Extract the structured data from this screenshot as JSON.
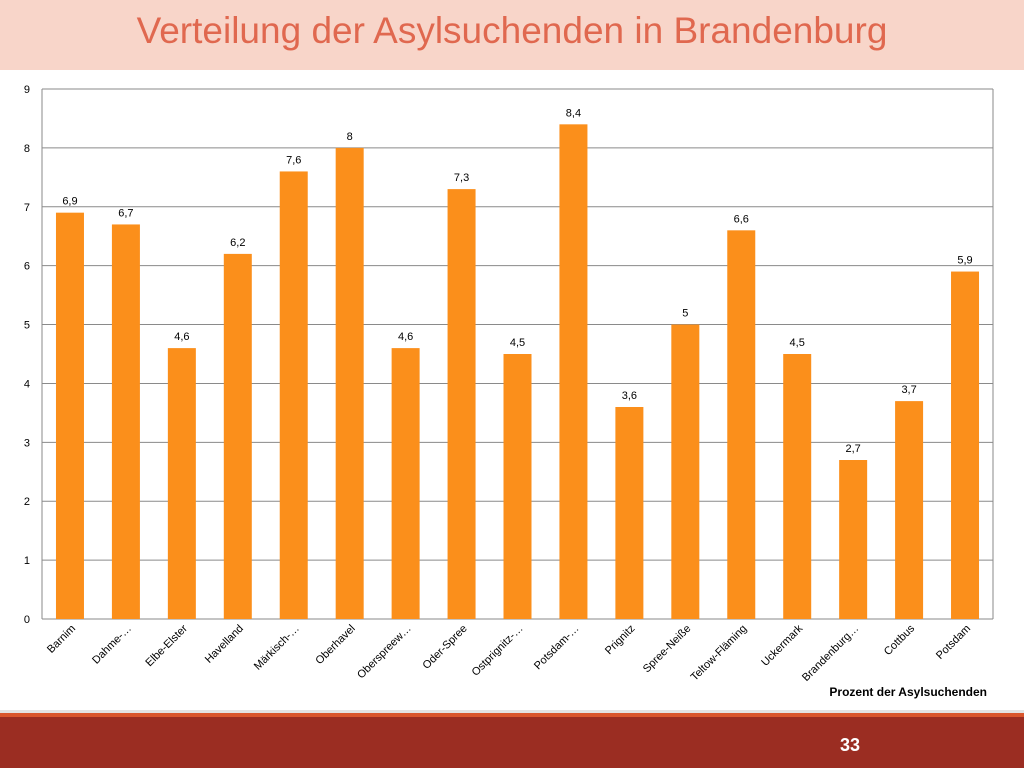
{
  "slide": {
    "title": "Verteilung der Asylsuchenden in Brandenburg",
    "page_number": "33"
  },
  "colors": {
    "bar": "#fb8f1b",
    "title": "#e0684f",
    "title_band": "#f8d5c9",
    "footer": "#9b2d22"
  },
  "chart_data": {
    "type": "bar",
    "title": "",
    "xlabel": "",
    "ylabel": "",
    "legend_label": "Prozent der Asylsuchenden",
    "legend_position": "bottom-right",
    "grid": true,
    "ylim": [
      0,
      9
    ],
    "yticks": [
      "0",
      "1",
      "2",
      "3",
      "4",
      "5",
      "6",
      "7",
      "8",
      "9"
    ],
    "categories": [
      "Barnim",
      "Dahme-…",
      "Elbe-Elster",
      "Havelland",
      "Märkisch-…",
      "Oberhavel",
      "Oberspreew…",
      "Oder-Spree",
      "Ostprignitz-…",
      "Potsdam-…",
      "Prignitz",
      "Spree-Neiße",
      "Teltow-Fläming",
      "Uckermark",
      "Brandenburg…",
      "Cottbus",
      "Potsdam"
    ],
    "series": [
      {
        "values": [
          6.9,
          6.7,
          4.6,
          6.2,
          7.6,
          8,
          4.6,
          7.3,
          4.5,
          8.4,
          3.6,
          5,
          6.6,
          4.5,
          2.7,
          3.7,
          5.9
        ],
        "labels": [
          "6,9",
          "6,7",
          "4,6",
          "6,2",
          "7,6",
          "8",
          "4,6",
          "7,3",
          "4,5",
          "8,4",
          "3,6",
          "5",
          "6,6",
          "4,5",
          "2,7",
          "3,7",
          "5,9"
        ]
      }
    ]
  }
}
